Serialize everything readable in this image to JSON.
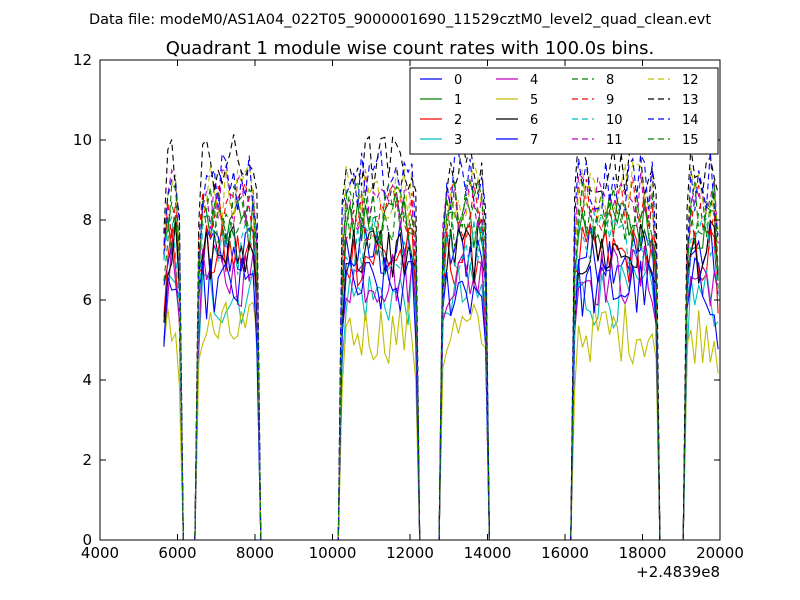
{
  "suptitle": "Data file: modeM0/AS1A04_022T05_9000001690_11529cztM0_level2_quad_clean.evt",
  "chart_data": {
    "type": "line",
    "title": "Quadrant 1 module wise count rates with 100.0s bins.",
    "xlabel": "",
    "ylabel": "",
    "xlim": [
      4000,
      20000
    ],
    "ylim": [
      0,
      12
    ],
    "x_offset_label": "+2.4839e8",
    "xticks": [
      4000,
      6000,
      8000,
      10000,
      12000,
      14000,
      16000,
      18000,
      20000
    ],
    "xtick_labels": [
      "4000",
      "6000",
      "8000",
      "10000",
      "12000",
      "14000",
      "16000",
      "18000",
      "20000"
    ],
    "yticks": [
      0,
      2,
      4,
      6,
      8,
      10,
      12
    ],
    "ytick_labels": [
      "0",
      "2",
      "4",
      "6",
      "8",
      "10",
      "12"
    ],
    "segments": [
      [
        5650,
        6050
      ],
      [
        6550,
        8050
      ],
      [
        10250,
        12150
      ],
      [
        12850,
        13950
      ],
      [
        16250,
        18350
      ],
      [
        19150,
        19950
      ]
    ],
    "series": [
      {
        "name": "0",
        "color": "#0000ff",
        "dash": "solid",
        "level": 7.2
      },
      {
        "name": "1",
        "color": "#008000",
        "dash": "solid",
        "level": 7.9
      },
      {
        "name": "2",
        "color": "#ff0000",
        "dash": "solid",
        "level": 7.1
      },
      {
        "name": "3",
        "color": "#00bfbf",
        "dash": "solid",
        "level": 6.1
      },
      {
        "name": "4",
        "color": "#bf00bf",
        "dash": "solid",
        "level": 6.6
      },
      {
        "name": "5",
        "color": "#bfbf00",
        "dash": "solid",
        "level": 5.2
      },
      {
        "name": "6",
        "color": "#000000",
        "dash": "solid",
        "level": 7.2
      },
      {
        "name": "7",
        "color": "#0000ff",
        "dash": "solid",
        "level": 6.3
      },
      {
        "name": "8",
        "color": "#008000",
        "dash": "dashed",
        "level": 8.1
      },
      {
        "name": "9",
        "color": "#ff0000",
        "dash": "dashed",
        "level": 8.3
      },
      {
        "name": "10",
        "color": "#00bfbf",
        "dash": "dashed",
        "level": 7.4
      },
      {
        "name": "11",
        "color": "#bf00bf",
        "dash": "dashed",
        "level": 8.5
      },
      {
        "name": "12",
        "color": "#bfbf00",
        "dash": "dashed",
        "level": 8.7
      },
      {
        "name": "13",
        "color": "#000000",
        "dash": "dashed",
        "level": 9.4
      },
      {
        "name": "14",
        "color": "#0000ff",
        "dash": "dashed",
        "level": 9.0
      },
      {
        "name": "15",
        "color": "#008000",
        "dash": "dashed",
        "level": 8.2
      }
    ],
    "legend_position": "top-right",
    "legend_columns": 4
  }
}
